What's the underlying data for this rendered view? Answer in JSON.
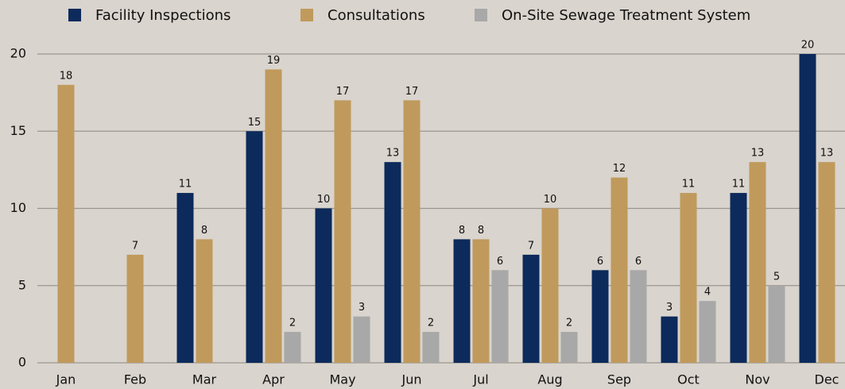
{
  "chart_data": {
    "type": "bar",
    "categories": [
      "Jan",
      "Feb",
      "Mar",
      "Apr",
      "May",
      "Jun",
      "Jul",
      "Aug",
      "Sep",
      "Oct",
      "Nov",
      "Dec"
    ],
    "series": [
      {
        "name": "Facility Inspections",
        "color": "#0c2a5b",
        "values": [
          null,
          null,
          11,
          15,
          10,
          13,
          8,
          7,
          6,
          3,
          11,
          20
        ]
      },
      {
        "name": "Consultations",
        "color": "#c09a5c",
        "values": [
          18,
          7,
          8,
          19,
          17,
          17,
          8,
          10,
          12,
          11,
          13,
          13
        ]
      },
      {
        "name": "On-Site Sewage Treatment System",
        "color": "#a8a8a8",
        "values": [
          null,
          null,
          null,
          2,
          3,
          2,
          6,
          2,
          6,
          4,
          5,
          null
        ]
      }
    ],
    "ylim": [
      0,
      20
    ],
    "yticks": [
      0,
      5,
      10,
      15,
      20
    ],
    "grid": true,
    "legend": "top"
  }
}
